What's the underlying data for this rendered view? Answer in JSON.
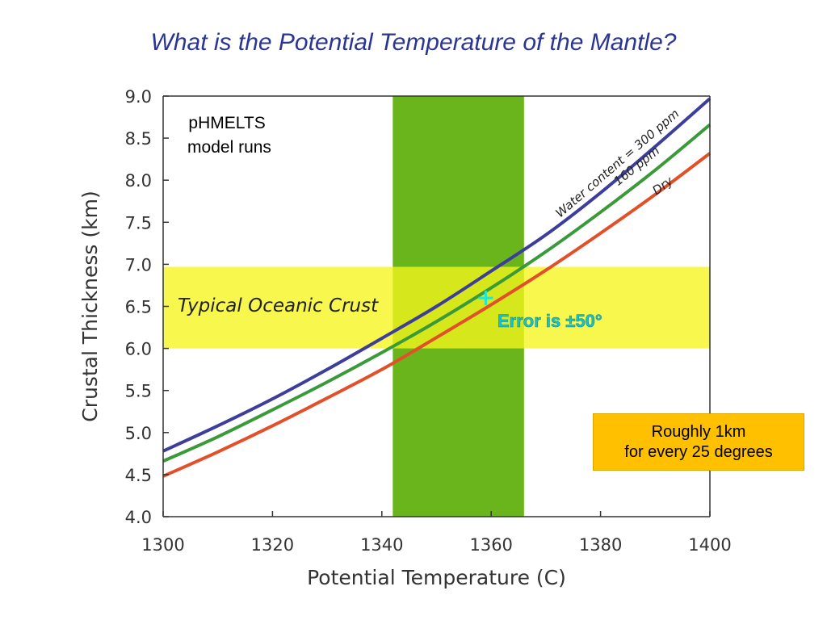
{
  "slide": {
    "title": "What is the Potential Temperature of the Mantle?"
  },
  "callout": {
    "line1": "Roughly 1km",
    "line2": "for every 25 degrees"
  },
  "colors": {
    "title": "#2b3593",
    "band_green": "#6ab51c",
    "band_yellow": "#f5f51c",
    "error_cross": "#1ee6d8",
    "error_text": "#19c2c8",
    "callout_bg": "#ffc000"
  },
  "chart_data": {
    "type": "line",
    "xlabel": "Potential Temperature (C)",
    "ylabel": "Crustal Thickness (km)",
    "xlim": [
      1300,
      1400
    ],
    "ylim": [
      4.0,
      9.0
    ],
    "x_ticks": [
      "1300",
      "1320",
      "1340",
      "1360",
      "1380",
      "1400"
    ],
    "y_ticks": [
      "4.0",
      "4.5",
      "5.0",
      "5.5",
      "6.0",
      "6.5",
      "7.0",
      "7.5",
      "8.0",
      "8.5",
      "9.0"
    ],
    "grid": false,
    "annotation_model": [
      "pHMELTS",
      "model runs"
    ],
    "series": [
      {
        "name": "Water content = 300 ppm",
        "color": "#3d3d9c",
        "x": [
          1300,
          1310,
          1320,
          1330,
          1340,
          1350,
          1360,
          1370,
          1380,
          1390,
          1400
        ],
        "y": [
          4.78,
          5.08,
          5.4,
          5.75,
          6.12,
          6.5,
          6.92,
          7.35,
          7.85,
          8.4,
          8.97
        ]
      },
      {
        "name": "160 ppm",
        "color": "#3a9a3a",
        "x": [
          1300,
          1310,
          1320,
          1330,
          1340,
          1350,
          1360,
          1370,
          1380,
          1390,
          1400
        ],
        "y": [
          4.66,
          4.95,
          5.27,
          5.6,
          5.95,
          6.32,
          6.72,
          7.15,
          7.62,
          8.12,
          8.66
        ]
      },
      {
        "name": "Dry",
        "color": "#e2502a",
        "x": [
          1300,
          1310,
          1320,
          1330,
          1340,
          1350,
          1360,
          1370,
          1380,
          1390,
          1400
        ],
        "y": [
          4.48,
          4.77,
          5.08,
          5.41,
          5.75,
          6.13,
          6.52,
          6.93,
          7.37,
          7.83,
          8.32
        ]
      }
    ],
    "bands": {
      "temperature_range": {
        "x": [
          1342,
          1366
        ]
      },
      "crust_range": {
        "label": "Typical Oceanic Crust",
        "y": [
          6.0,
          6.97
        ]
      }
    },
    "estimate_point": {
      "x": 1359,
      "y": 6.6,
      "label": "Error is ±50°"
    }
  }
}
